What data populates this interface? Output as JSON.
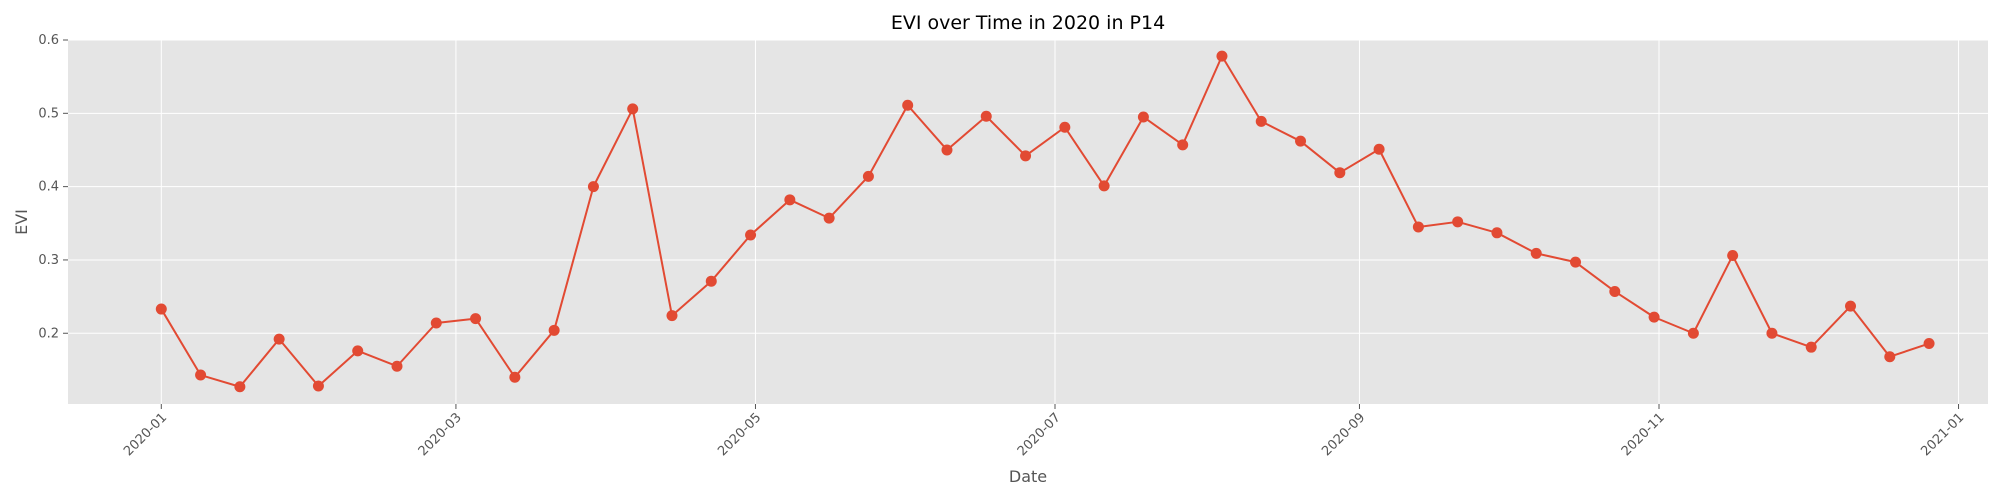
{
  "chart_data": {
    "type": "line",
    "title": "EVI over Time in 2020 in P14",
    "xlabel": "Date",
    "ylabel": "EVI",
    "ylim": [
      0.1035,
      0.6
    ],
    "xlim": [
      "2019-12-13",
      "2021-01-07"
    ],
    "grid": true,
    "legend": "none",
    "x_ticks": [
      "2020-01",
      "2020-03",
      "2020-05",
      "2020-07",
      "2020-09",
      "2020-11",
      "2021-01"
    ],
    "y_ticks": [
      "0.2",
      "0.3",
      "0.4",
      "0.5",
      "0.6"
    ],
    "series": [
      {
        "x": [
          "2020-01-01",
          "2020-01-09",
          "2020-01-17",
          "2020-01-25",
          "2020-02-02",
          "2020-02-10",
          "2020-02-18",
          "2020-02-26",
          "2020-03-05",
          "2020-03-13",
          "2020-03-21",
          "2020-03-29",
          "2020-04-06",
          "2020-04-14",
          "2020-04-22",
          "2020-04-30",
          "2020-05-08",
          "2020-05-16",
          "2020-05-24",
          "2020-06-01",
          "2020-06-09",
          "2020-06-17",
          "2020-06-25",
          "2020-07-03",
          "2020-07-11",
          "2020-07-19",
          "2020-07-27",
          "2020-08-04",
          "2020-08-12",
          "2020-08-20",
          "2020-08-28",
          "2020-09-05",
          "2020-09-13",
          "2020-09-21",
          "2020-09-29",
          "2020-10-07",
          "2020-10-15",
          "2020-10-23",
          "2020-10-31",
          "2020-11-08",
          "2020-11-16",
          "2020-11-24",
          "2020-12-02",
          "2020-12-10",
          "2020-12-18",
          "2020-12-26"
        ],
        "values": [
          0.233,
          0.143,
          0.127,
          0.192,
          0.128,
          0.176,
          0.155,
          0.214,
          0.22,
          0.14,
          0.204,
          0.4,
          0.506,
          0.224,
          0.271,
          0.334,
          0.382,
          0.357,
          0.414,
          0.511,
          0.45,
          0.496,
          0.442,
          0.481,
          0.401,
          0.495,
          0.457,
          0.578,
          0.489,
          0.462,
          0.419,
          0.451,
          0.345,
          0.352,
          0.337,
          0.309,
          0.297,
          0.257,
          0.222,
          0.2,
          0.306,
          0.2,
          0.181,
          0.237,
          0.168,
          0.186
        ],
        "color": "#E24A33"
      }
    ]
  },
  "colors": {
    "plot_background": "#E5E5E5",
    "grid": "#FFFFFF",
    "series": "#E24A33",
    "tick": "#555555"
  }
}
